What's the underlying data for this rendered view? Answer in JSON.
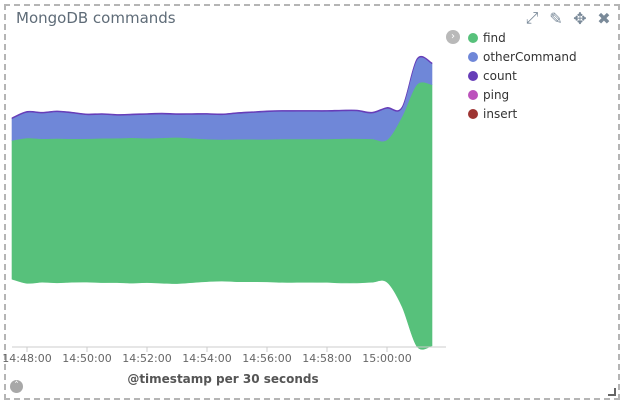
{
  "panel": {
    "title": "MongoDB commands",
    "actions": [
      {
        "icon": "expand-icon",
        "glyph": "⤢"
      },
      {
        "icon": "pencil-edit-icon",
        "glyph": "✎"
      },
      {
        "icon": "move-icon",
        "glyph": "✥"
      },
      {
        "icon": "close-icon",
        "glyph": "✖"
      }
    ],
    "legend_toggle_glyph": "›",
    "collapse_glyph": "˄"
  },
  "chart_data": {
    "type": "area",
    "stacking": "wiggle",
    "x": [
      "14:47:30",
      "14:48:00",
      "14:48:30",
      "14:49:00",
      "14:49:30",
      "14:50:00",
      "14:50:30",
      "14:51:00",
      "14:51:30",
      "14:52:00",
      "14:52:30",
      "14:53:00",
      "14:53:30",
      "14:54:00",
      "14:54:30",
      "14:55:00",
      "14:55:30",
      "14:56:00",
      "14:56:30",
      "14:57:00",
      "14:57:30",
      "14:58:00",
      "14:58:30",
      "14:59:00",
      "14:59:30",
      "15:00:00",
      "15:00:30",
      "15:01:00",
      "15:01:30"
    ],
    "series": [
      {
        "name": "find",
        "color": "#57c17b",
        "values": [
          146,
          153,
          151,
          152,
          151,
          151,
          152,
          152,
          153,
          152,
          153,
          154,
          152,
          150,
          149,
          150,
          150,
          150,
          151,
          151,
          151,
          151,
          152,
          152,
          151,
          150,
          200,
          276,
          275
        ]
      },
      {
        "name": "otherCommand",
        "color": "#6f87d8",
        "values": [
          23,
          27,
          27,
          28,
          27,
          25,
          25,
          24,
          24,
          25,
          25,
          24,
          25,
          26,
          26,
          27,
          28,
          29,
          29,
          29,
          29,
          29,
          29,
          29,
          27,
          33,
          9,
          26,
          22
        ]
      },
      {
        "name": "count",
        "color": "#663db8",
        "values": [
          1,
          1,
          1,
          1,
          1,
          1,
          1,
          1,
          1,
          1,
          1,
          1,
          1,
          1,
          1,
          1,
          1,
          1,
          1,
          1,
          1,
          1,
          1,
          1,
          1,
          1,
          1,
          1,
          1
        ]
      },
      {
        "name": "ping",
        "color": "#bc52bc",
        "values": [
          0,
          0,
          0,
          0,
          0,
          0,
          0,
          0,
          0,
          0,
          0,
          0,
          0,
          0,
          0,
          0,
          0,
          0,
          0,
          0,
          0,
          0,
          0,
          0,
          0,
          0,
          0,
          0,
          0
        ]
      },
      {
        "name": "insert",
        "color": "#9e3533",
        "values": [
          0,
          0,
          0,
          0,
          0,
          0,
          0,
          0,
          0,
          0,
          0,
          0,
          0,
          0,
          0,
          0,
          0,
          0,
          0,
          0,
          0,
          0,
          0,
          0,
          0,
          0,
          0,
          0,
          0
        ]
      }
    ],
    "tick_labels": [
      "14:48:00",
      "14:50:00",
      "14:52:00",
      "14:54:00",
      "14:56:00",
      "14:58:00",
      "15:00:00"
    ],
    "xlabel": "@timestamp per 30 seconds",
    "legend_position": "right",
    "grid": false
  }
}
